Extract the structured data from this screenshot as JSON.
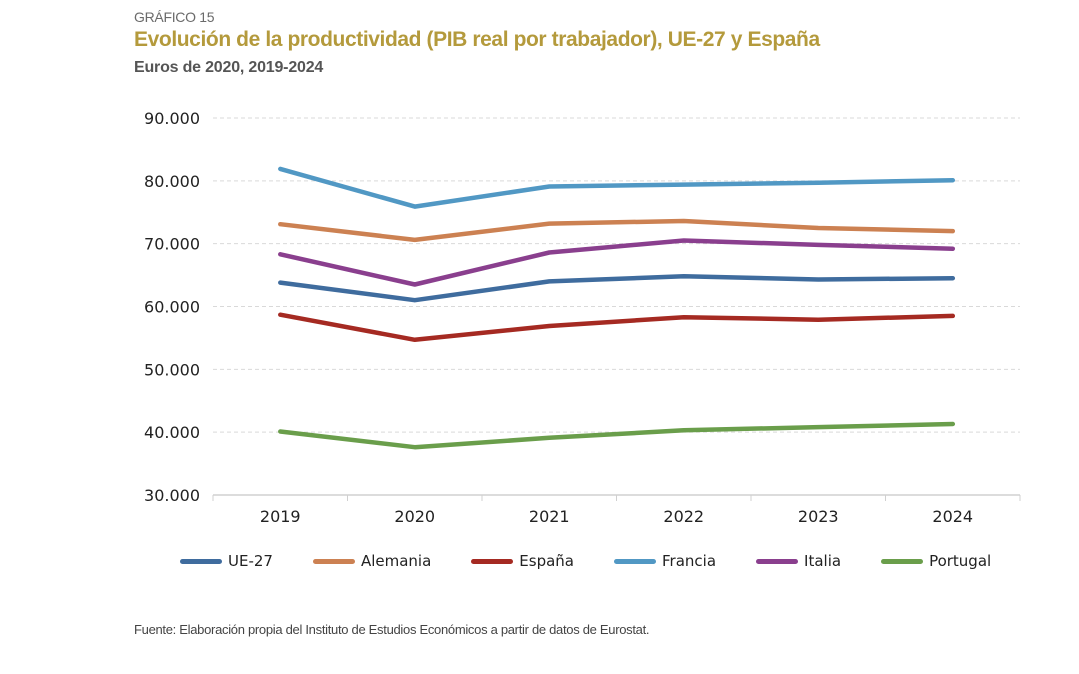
{
  "header": {
    "kicker": "GRÁFICO 15",
    "title": "Evolución de la productividad (PIB real por trabajador), UE-27 y España",
    "subtitle": "Euros de 2020, 2019-2024"
  },
  "source": "Fuente: Elaboración propia del Instituto de Estudios Económicos a partir de datos de Eurostat.",
  "chart_data": {
    "type": "line",
    "title": "Evolución de la productividad (PIB real por trabajador), UE-27 y España",
    "subtitle": "Euros de 2020, 2019-2024",
    "xlabel": "",
    "ylabel": "",
    "categories": [
      "2019",
      "2020",
      "2021",
      "2022",
      "2023",
      "2024"
    ],
    "ylim": [
      30000,
      90000
    ],
    "yticks": [
      30000,
      40000,
      50000,
      60000,
      70000,
      80000,
      90000
    ],
    "ytick_labels": [
      "30.000",
      "40.000",
      "50.000",
      "60.000",
      "70.000",
      "80.000",
      "90.000"
    ],
    "grid": true,
    "legend_position": "bottom",
    "series": [
      {
        "name": "UE-27",
        "color": "#3f6c9e",
        "values": [
          63800,
          61000,
          64000,
          64800,
          64300,
          64500
        ]
      },
      {
        "name": "Alemania",
        "color": "#cc8152",
        "values": [
          73100,
          70600,
          73200,
          73600,
          72500,
          72000
        ]
      },
      {
        "name": "España",
        "color": "#a52a22",
        "values": [
          58700,
          54700,
          56900,
          58300,
          57900,
          58500
        ]
      },
      {
        "name": "Francia",
        "color": "#5198c4",
        "values": [
          81900,
          75900,
          79100,
          79400,
          79700,
          80100
        ]
      },
      {
        "name": "Italia",
        "color": "#8a3f8e",
        "values": [
          68300,
          63500,
          68600,
          70500,
          69800,
          69200
        ]
      },
      {
        "name": "Portugal",
        "color": "#6a9e4b",
        "values": [
          40100,
          37600,
          39100,
          40300,
          40800,
          41300
        ]
      }
    ]
  }
}
